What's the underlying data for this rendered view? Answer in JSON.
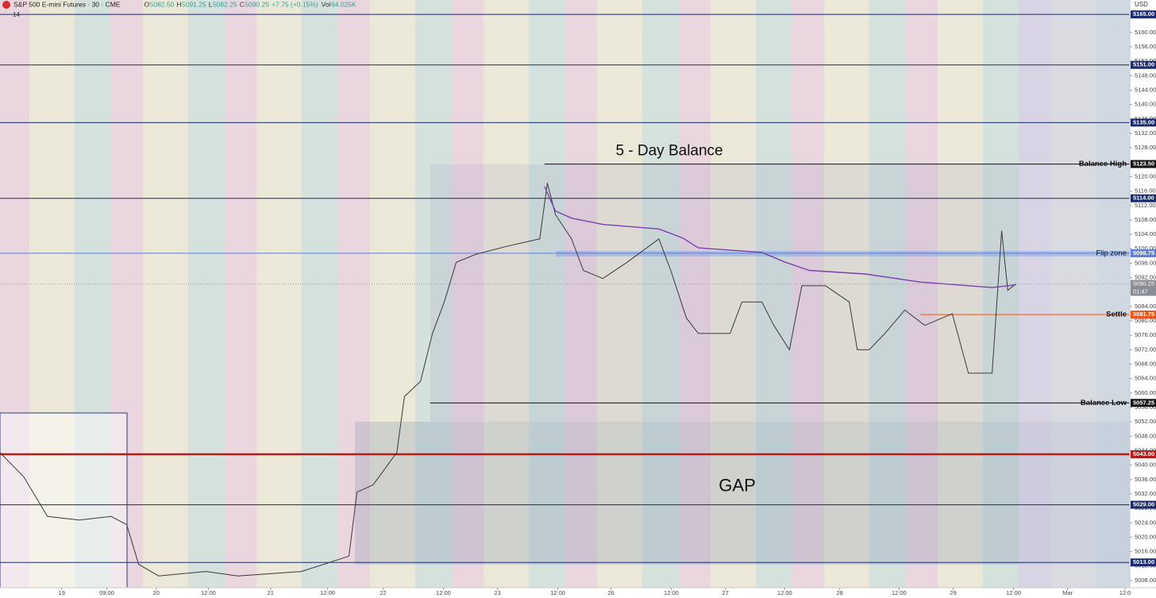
{
  "chart_data": {
    "type": "line",
    "header": {
      "symbol": "S&P 500 E-mini Futures · 30 · CME",
      "ohlc": [
        {
          "label": "O",
          "value": "5082.50"
        },
        {
          "label": "H",
          "value": "5091.25"
        },
        {
          "label": "L",
          "value": "5082.25"
        },
        {
          "label": "C",
          "value": "5090.25"
        }
      ],
      "change": "+7.75 (+0.15%)",
      "volume_label": "Vol",
      "volume": "64.025K",
      "indicator_count": "14",
      "currency": "USD"
    },
    "annotations": [
      {
        "text": "5 - Day Balance",
        "x": 128.0,
        "y": 5127
      },
      {
        "text": "GAP",
        "x": 142.3,
        "y": 5034
      }
    ],
    "xlim": [
      -13,
      225
    ],
    "xticks": [
      {
        "value": 0,
        "label": "19"
      },
      {
        "value": 9.5,
        "label": "09:00"
      },
      {
        "value": 19.9,
        "label": "20"
      },
      {
        "value": 30.9,
        "label": "12:00"
      },
      {
        "value": 44,
        "label": "21"
      },
      {
        "value": 56,
        "label": "12:00"
      },
      {
        "value": 67.7,
        "label": "22"
      },
      {
        "value": 80.4,
        "label": "12:00"
      },
      {
        "value": 91.8,
        "label": "23"
      },
      {
        "value": 104.5,
        "label": "12:00"
      },
      {
        "value": 115.7,
        "label": "26"
      },
      {
        "value": 128.4,
        "label": "12:00"
      },
      {
        "value": 139.8,
        "label": "27"
      },
      {
        "value": 152.3,
        "label": "12:00"
      },
      {
        "value": 163.9,
        "label": "28"
      },
      {
        "value": 176.4,
        "label": "12:00"
      },
      {
        "value": 187.8,
        "label": "29"
      },
      {
        "value": 200.5,
        "label": "12:00"
      },
      {
        "value": 211.9,
        "label": "Mar"
      },
      {
        "value": 224,
        "label": "12:0"
      }
    ],
    "ylim": [
      5006,
      5169
    ],
    "yticks": [
      {
        "value": 5008,
        "label": "5008.00"
      },
      {
        "value": 5012,
        "label": "5012.00"
      },
      {
        "value": 5016,
        "label": "5016.00"
      },
      {
        "value": 5020,
        "label": "5020.00"
      },
      {
        "value": 5024,
        "label": "5024.00"
      },
      {
        "value": 5028,
        "label": "5028.00"
      },
      {
        "value": 5032,
        "label": "5032.00"
      },
      {
        "value": 5036,
        "label": "5036.00"
      },
      {
        "value": 5040,
        "label": "5040.00"
      },
      {
        "value": 5044,
        "label": "5044.00"
      },
      {
        "value": 5048,
        "label": "5048.00"
      },
      {
        "value": 5052,
        "label": "5052.00"
      },
      {
        "value": 5056,
        "label": "5056.00"
      },
      {
        "value": 5060,
        "label": "5060.00"
      },
      {
        "value": 5064,
        "label": "5064.00"
      },
      {
        "value": 5068,
        "label": "5068.00"
      },
      {
        "value": 5072,
        "label": "5072.00"
      },
      {
        "value": 5076,
        "label": "5076.00"
      },
      {
        "value": 5080,
        "label": "5080.00"
      },
      {
        "value": 5084,
        "label": "5084.00"
      },
      {
        "value": 5088,
        "label": "5088.00"
      },
      {
        "value": 5092,
        "label": "5092.00"
      },
      {
        "value": 5096,
        "label": "5096.00"
      },
      {
        "value": 5100,
        "label": "5100.00"
      },
      {
        "value": 5104,
        "label": "5104.00"
      },
      {
        "value": 5108,
        "label": "5108.00"
      },
      {
        "value": 5112,
        "label": "5112.00"
      },
      {
        "value": 5116,
        "label": "5116.00"
      },
      {
        "value": 5120,
        "label": "5120.00"
      },
      {
        "value": 5124,
        "label": "5124.00"
      },
      {
        "value": 5128,
        "label": "5128.00"
      },
      {
        "value": 5132,
        "label": "5132.00"
      },
      {
        "value": 5136,
        "label": "5136.00"
      },
      {
        "value": 5140,
        "label": "5140.00"
      },
      {
        "value": 5144,
        "label": "5144.00"
      },
      {
        "value": 5148,
        "label": "5148.00"
      },
      {
        "value": 5152,
        "label": "5152.00"
      },
      {
        "value": 5156,
        "label": "5156.00"
      },
      {
        "value": 5160,
        "label": "5160.00"
      }
    ],
    "levels": [
      {
        "value": 5165,
        "label": "5165.00",
        "color": "#1a2a6c"
      },
      {
        "value": 5151,
        "label": "5151.00",
        "color": "#1a2a6c"
      },
      {
        "value": 5135,
        "label": "5135.00",
        "color": "#1a2a6c"
      },
      {
        "value": 5123.5,
        "label": "5123.50",
        "color": "#111111",
        "name": "Balance High",
        "x_start": 101.7
      },
      {
        "value": 5114,
        "label": "5114.00",
        "color": "#1a2a6c"
      },
      {
        "value": 5098.75,
        "label": "5098.75",
        "color": "#5b7fd6",
        "name": "Flip zone"
      },
      {
        "value": 5081.75,
        "label": "5081.75",
        "color": "#e8541c",
        "name": "Settle",
        "x_start": 180.9
      },
      {
        "value": 5057.25,
        "label": "5057.25",
        "color": "#111111",
        "name": "Balance Low",
        "x_start": 77.6
      },
      {
        "value": 5043,
        "label": "5043.00",
        "color": "#b71c1c"
      },
      {
        "value": 5029,
        "label": "5029.00",
        "color": "#1a2a6c"
      },
      {
        "value": 5013,
        "label": "5013.00",
        "color": "#1a2a6c"
      }
    ],
    "last_price": {
      "value": 5090.25,
      "label": "5090.25",
      "countdown": "01:47"
    },
    "series": [
      {
        "color": "#3a3a3a",
        "x": [
          -13,
          -8,
          -3,
          3.7,
          10.4,
          13.7,
          16.2,
          20.4,
          30.4,
          37.1,
          50.5,
          60.5,
          62.2,
          65.6,
          70.6,
          72.2,
          75.6,
          78.1,
          80.6,
          83.1,
          87.3,
          94,
          100.7,
          102.3,
          104,
          107.4,
          109.9,
          114,
          119.1,
          125.8,
          128.3,
          131.6,
          134.1,
          140.8,
          143.3,
          147.5,
          150,
          153.3,
          155.9,
          160.9,
          165.9,
          167.6,
          170.1,
          173.4,
          177.6,
          181.8,
          187.6,
          191,
          196,
          198,
          199.3,
          201
        ],
        "values": [
          5043.5,
          5036.75,
          5025.75,
          5024.75,
          5025.75,
          5023.5,
          5012.5,
          5009.25,
          5010.5,
          5009.25,
          5010.5,
          5014.75,
          5032.5,
          5034.5,
          5043.5,
          5059,
          5063.25,
          5076.5,
          5085.25,
          5096.25,
          5098.5,
          5100.75,
          5102.75,
          5118.25,
          5109.5,
          5102.75,
          5094,
          5091.75,
          5096.25,
          5102.75,
          5094,
          5080.75,
          5076.5,
          5076.5,
          5085.25,
          5085.25,
          5078.75,
          5072,
          5089.75,
          5089.75,
          5085.25,
          5072,
          5072,
          5076.5,
          5083,
          5078.75,
          5082,
          5065.5,
          5065.5,
          5105,
          5088.5,
          5090.25
        ]
      },
      {
        "color": "#7b3fb0",
        "x": [
          101.7,
          104,
          107.4,
          114,
          125.8,
          130.8,
          134.1,
          147.5,
          152.5,
          157.5,
          169.2,
          180.9,
          196,
          201
        ],
        "values": [
          5117.25,
          5110.5,
          5108.5,
          5106.75,
          5105.5,
          5103,
          5100.25,
          5099,
          5096.25,
          5094,
          5093,
          5090.75,
          5089.25,
          5090
        ]
      }
    ]
  }
}
